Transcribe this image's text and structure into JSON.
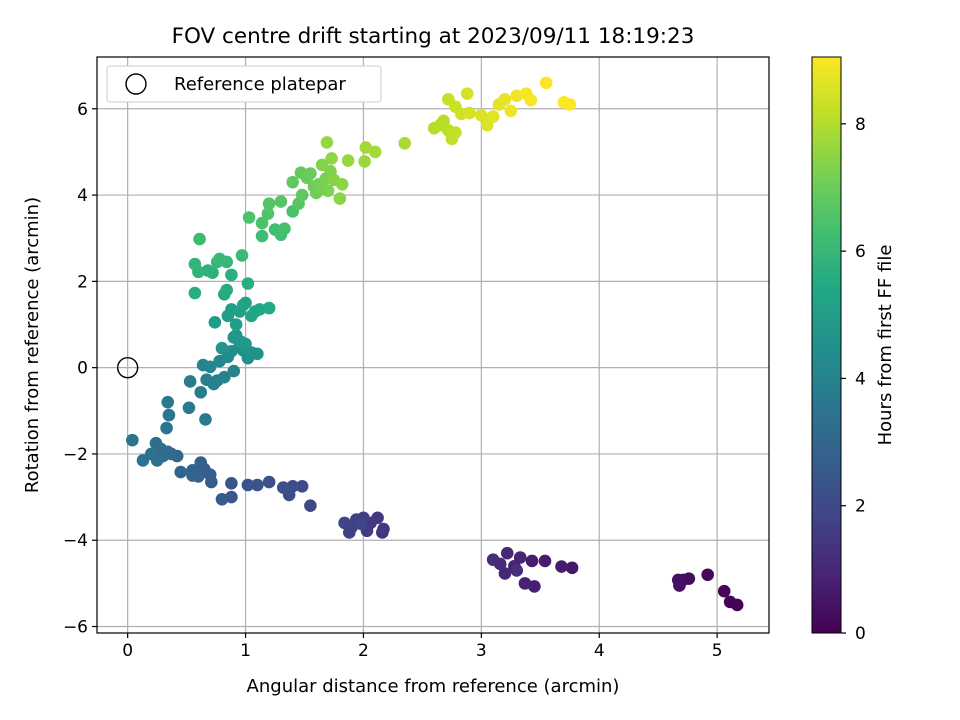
{
  "chart_data": {
    "type": "scatter",
    "title": "FOV centre drift starting at 2023/09/11 18:19:23",
    "xlabel": "Angular distance from reference (arcmin)",
    "ylabel": "Rotation from reference (arcmin)",
    "xlim": [
      -0.26,
      5.44
    ],
    "ylim": [
      -6.15,
      7.2
    ],
    "xticks": [
      0,
      1,
      2,
      3,
      4,
      5
    ],
    "yticks": [
      -6,
      -4,
      -2,
      0,
      2,
      4,
      6
    ],
    "grid": true,
    "legend": {
      "position": "top-left",
      "entries": [
        "Reference platepar"
      ]
    },
    "reference_point": {
      "x": 0,
      "y": 0,
      "label": "Reference platepar"
    },
    "colorbar": {
      "label": "Hours from first FF file",
      "range": [
        0,
        9.05
      ],
      "ticks": [
        0,
        2,
        4,
        6,
        8
      ],
      "colormap": "viridis"
    },
    "points": [
      {
        "x": 5.17,
        "y": -5.5,
        "c": 0.05
      },
      {
        "x": 5.11,
        "y": -5.43,
        "c": 0.1
      },
      {
        "x": 5.06,
        "y": -5.18,
        "c": 0.15
      },
      {
        "x": 4.92,
        "y": -4.8,
        "c": 0.2
      },
      {
        "x": 4.76,
        "y": -4.89,
        "c": 0.25
      },
      {
        "x": 4.71,
        "y": -4.92,
        "c": 0.3
      },
      {
        "x": 4.68,
        "y": -5.05,
        "c": 0.35
      },
      {
        "x": 4.67,
        "y": -4.92,
        "c": 0.4
      },
      {
        "x": 3.77,
        "y": -4.64,
        "c": 0.6
      },
      {
        "x": 3.68,
        "y": -4.61,
        "c": 0.65
      },
      {
        "x": 3.54,
        "y": -4.48,
        "c": 0.7
      },
      {
        "x": 3.43,
        "y": -4.48,
        "c": 0.75
      },
      {
        "x": 3.45,
        "y": -5.07,
        "c": 0.8
      },
      {
        "x": 3.37,
        "y": -5.0,
        "c": 0.85
      },
      {
        "x": 3.33,
        "y": -4.4,
        "c": 0.9
      },
      {
        "x": 3.28,
        "y": -4.6,
        "c": 0.95
      },
      {
        "x": 3.2,
        "y": -4.77,
        "c": 1.0
      },
      {
        "x": 3.22,
        "y": -4.3,
        "c": 1.05
      },
      {
        "x": 3.16,
        "y": -4.55,
        "c": 1.1
      },
      {
        "x": 3.1,
        "y": -4.45,
        "c": 1.15
      },
      {
        "x": 3.3,
        "y": -4.7,
        "c": 1.2
      },
      {
        "x": 2.16,
        "y": -3.82,
        "c": 1.35
      },
      {
        "x": 2.17,
        "y": -3.74,
        "c": 1.4
      },
      {
        "x": 2.12,
        "y": -3.48,
        "c": 1.45
      },
      {
        "x": 2.06,
        "y": -3.6,
        "c": 1.5
      },
      {
        "x": 2.03,
        "y": -3.78,
        "c": 1.55
      },
      {
        "x": 2.0,
        "y": -3.48,
        "c": 1.6
      },
      {
        "x": 1.94,
        "y": -3.52,
        "c": 1.65
      },
      {
        "x": 1.88,
        "y": -3.82,
        "c": 1.7
      },
      {
        "x": 1.9,
        "y": -3.7,
        "c": 1.75
      },
      {
        "x": 1.84,
        "y": -3.6,
        "c": 1.8
      },
      {
        "x": 1.98,
        "y": -3.62,
        "c": 1.85
      },
      {
        "x": 1.55,
        "y": -3.2,
        "c": 2.0
      },
      {
        "x": 1.48,
        "y": -2.75,
        "c": 2.05
      },
      {
        "x": 1.4,
        "y": -2.75,
        "c": 2.1
      },
      {
        "x": 1.37,
        "y": -2.95,
        "c": 2.15
      },
      {
        "x": 1.32,
        "y": -2.78,
        "c": 2.2
      },
      {
        "x": 1.2,
        "y": -2.65,
        "c": 2.25
      },
      {
        "x": 1.1,
        "y": -2.72,
        "c": 2.3
      },
      {
        "x": 1.02,
        "y": -2.72,
        "c": 2.35
      },
      {
        "x": 0.88,
        "y": -2.68,
        "c": 2.4
      },
      {
        "x": 0.88,
        "y": -3.0,
        "c": 2.45
      },
      {
        "x": 0.8,
        "y": -3.05,
        "c": 2.5
      },
      {
        "x": 0.71,
        "y": -2.65,
        "c": 2.6
      },
      {
        "x": 0.7,
        "y": -2.48,
        "c": 2.65
      },
      {
        "x": 0.65,
        "y": -2.35,
        "c": 2.7
      },
      {
        "x": 0.62,
        "y": -2.2,
        "c": 2.75
      },
      {
        "x": 0.6,
        "y": -2.52,
        "c": 2.8
      },
      {
        "x": 0.55,
        "y": -2.38,
        "c": 2.85
      },
      {
        "x": 0.55,
        "y": -2.5,
        "c": 2.9
      },
      {
        "x": 0.45,
        "y": -2.42,
        "c": 2.95
      },
      {
        "x": 0.42,
        "y": -2.05,
        "c": 3.0
      },
      {
        "x": 0.37,
        "y": -2.0,
        "c": 3.05
      },
      {
        "x": 0.34,
        "y": -1.95,
        "c": 3.1
      },
      {
        "x": 0.3,
        "y": -2.05,
        "c": 3.15
      },
      {
        "x": 0.28,
        "y": -1.88,
        "c": 3.2
      },
      {
        "x": 0.25,
        "y": -2.15,
        "c": 3.25
      },
      {
        "x": 0.24,
        "y": -1.75,
        "c": 3.3
      },
      {
        "x": 0.2,
        "y": -2.0,
        "c": 3.35
      },
      {
        "x": 0.13,
        "y": -2.15,
        "c": 3.4
      },
      {
        "x": 0.04,
        "y": -1.68,
        "c": 3.45
      },
      {
        "x": 0.33,
        "y": -1.4,
        "c": 3.5
      },
      {
        "x": 0.35,
        "y": -1.1,
        "c": 3.55
      },
      {
        "x": 0.34,
        "y": -0.8,
        "c": 3.6
      },
      {
        "x": 0.66,
        "y": -1.2,
        "c": 3.65
      },
      {
        "x": 0.52,
        "y": -0.93,
        "c": 3.7
      },
      {
        "x": 0.53,
        "y": -0.32,
        "c": 3.75
      },
      {
        "x": 0.62,
        "y": -0.57,
        "c": 3.8
      },
      {
        "x": 0.67,
        "y": -0.28,
        "c": 3.85
      },
      {
        "x": 0.73,
        "y": -0.38,
        "c": 3.9
      },
      {
        "x": 0.76,
        "y": -0.3,
        "c": 3.95
      },
      {
        "x": 0.82,
        "y": -0.22,
        "c": 4.0
      },
      {
        "x": 0.9,
        "y": -0.08,
        "c": 4.05
      },
      {
        "x": 0.64,
        "y": 0.06,
        "c": 4.1
      },
      {
        "x": 0.7,
        "y": 0.02,
        "c": 4.15
      },
      {
        "x": 0.78,
        "y": 0.15,
        "c": 4.2
      },
      {
        "x": 0.85,
        "y": 0.25,
        "c": 4.3
      },
      {
        "x": 0.88,
        "y": 0.38,
        "c": 4.35
      },
      {
        "x": 0.95,
        "y": 0.5,
        "c": 4.4
      },
      {
        "x": 0.98,
        "y": 0.4,
        "c": 4.45
      },
      {
        "x": 1.02,
        "y": 0.22,
        "c": 4.5
      },
      {
        "x": 1.05,
        "y": 0.35,
        "c": 4.55
      },
      {
        "x": 1.1,
        "y": 0.32,
        "c": 4.6
      },
      {
        "x": 0.8,
        "y": 0.45,
        "c": 4.65
      },
      {
        "x": 0.9,
        "y": 0.7,
        "c": 4.7
      },
      {
        "x": 0.92,
        "y": 0.75,
        "c": 4.75
      },
      {
        "x": 0.96,
        "y": 0.6,
        "c": 4.8
      },
      {
        "x": 1.0,
        "y": 0.55,
        "c": 4.85
      },
      {
        "x": 0.74,
        "y": 1.05,
        "c": 4.95
      },
      {
        "x": 0.85,
        "y": 1.2,
        "c": 5.0
      },
      {
        "x": 0.88,
        "y": 1.35,
        "c": 5.05
      },
      {
        "x": 0.92,
        "y": 1.0,
        "c": 5.1
      },
      {
        "x": 0.95,
        "y": 1.3,
        "c": 5.15
      },
      {
        "x": 0.98,
        "y": 1.45,
        "c": 5.2
      },
      {
        "x": 1.0,
        "y": 1.5,
        "c": 5.25
      },
      {
        "x": 1.05,
        "y": 1.2,
        "c": 5.3
      },
      {
        "x": 1.08,
        "y": 1.3,
        "c": 5.35
      },
      {
        "x": 1.12,
        "y": 1.35,
        "c": 5.4
      },
      {
        "x": 1.2,
        "y": 1.38,
        "c": 5.45
      },
      {
        "x": 0.82,
        "y": 1.7,
        "c": 5.5
      },
      {
        "x": 0.84,
        "y": 1.8,
        "c": 5.55
      },
      {
        "x": 0.57,
        "y": 1.73,
        "c": 5.6
      },
      {
        "x": 1.02,
        "y": 1.95,
        "c": 5.65
      },
      {
        "x": 0.88,
        "y": 2.15,
        "c": 5.7
      },
      {
        "x": 0.72,
        "y": 2.2,
        "c": 5.75
      },
      {
        "x": 0.68,
        "y": 2.25,
        "c": 5.8
      },
      {
        "x": 0.6,
        "y": 2.22,
        "c": 5.85
      },
      {
        "x": 0.57,
        "y": 2.4,
        "c": 5.9
      },
      {
        "x": 0.76,
        "y": 2.45,
        "c": 5.95
      },
      {
        "x": 0.84,
        "y": 2.45,
        "c": 6.0
      },
      {
        "x": 0.78,
        "y": 2.52,
        "c": 6.05
      },
      {
        "x": 0.97,
        "y": 2.6,
        "c": 6.1
      },
      {
        "x": 0.61,
        "y": 2.98,
        "c": 6.15
      },
      {
        "x": 1.14,
        "y": 3.05,
        "c": 6.2
      },
      {
        "x": 1.25,
        "y": 3.2,
        "c": 6.25
      },
      {
        "x": 1.3,
        "y": 3.08,
        "c": 6.3
      },
      {
        "x": 1.33,
        "y": 3.22,
        "c": 6.35
      },
      {
        "x": 1.4,
        "y": 3.62,
        "c": 6.4
      },
      {
        "x": 1.14,
        "y": 3.35,
        "c": 6.45
      },
      {
        "x": 1.03,
        "y": 3.48,
        "c": 6.5
      },
      {
        "x": 1.19,
        "y": 3.57,
        "c": 6.55
      },
      {
        "x": 1.2,
        "y": 3.8,
        "c": 6.6
      },
      {
        "x": 1.3,
        "y": 3.85,
        "c": 6.65
      },
      {
        "x": 1.45,
        "y": 3.8,
        "c": 6.7
      },
      {
        "x": 1.48,
        "y": 4.0,
        "c": 6.75
      },
      {
        "x": 1.4,
        "y": 4.3,
        "c": 6.8
      },
      {
        "x": 1.47,
        "y": 4.52,
        "c": 6.85
      },
      {
        "x": 1.52,
        "y": 4.4,
        "c": 6.9
      },
      {
        "x": 1.55,
        "y": 4.5,
        "c": 6.95
      },
      {
        "x": 1.58,
        "y": 4.2,
        "c": 7.0
      },
      {
        "x": 1.6,
        "y": 4.05,
        "c": 7.05
      },
      {
        "x": 1.62,
        "y": 4.25,
        "c": 7.1
      },
      {
        "x": 1.65,
        "y": 4.15,
        "c": 7.15
      },
      {
        "x": 1.68,
        "y": 4.38,
        "c": 7.2
      },
      {
        "x": 1.7,
        "y": 4.1,
        "c": 7.25
      },
      {
        "x": 1.72,
        "y": 4.55,
        "c": 7.3
      },
      {
        "x": 1.65,
        "y": 4.7,
        "c": 7.35
      },
      {
        "x": 1.75,
        "y": 4.35,
        "c": 7.4
      },
      {
        "x": 1.8,
        "y": 3.92,
        "c": 7.45
      },
      {
        "x": 1.82,
        "y": 4.25,
        "c": 7.5
      },
      {
        "x": 1.73,
        "y": 4.85,
        "c": 7.55
      },
      {
        "x": 1.69,
        "y": 5.22,
        "c": 7.6
      },
      {
        "x": 1.87,
        "y": 4.8,
        "c": 7.65
      },
      {
        "x": 2.01,
        "y": 4.78,
        "c": 7.7
      },
      {
        "x": 2.02,
        "y": 5.1,
        "c": 7.75
      },
      {
        "x": 2.1,
        "y": 5.0,
        "c": 7.8
      },
      {
        "x": 2.35,
        "y": 5.2,
        "c": 7.9
      },
      {
        "x": 2.6,
        "y": 5.55,
        "c": 8.0
      },
      {
        "x": 2.65,
        "y": 5.62,
        "c": 8.05
      },
      {
        "x": 2.68,
        "y": 5.72,
        "c": 8.1
      },
      {
        "x": 2.72,
        "y": 5.5,
        "c": 8.15
      },
      {
        "x": 2.75,
        "y": 5.3,
        "c": 8.2
      },
      {
        "x": 2.78,
        "y": 5.45,
        "c": 8.25
      },
      {
        "x": 2.72,
        "y": 6.22,
        "c": 8.3
      },
      {
        "x": 2.78,
        "y": 6.05,
        "c": 8.35
      },
      {
        "x": 2.83,
        "y": 5.88,
        "c": 8.4
      },
      {
        "x": 2.88,
        "y": 6.35,
        "c": 8.45
      },
      {
        "x": 2.9,
        "y": 5.9,
        "c": 8.5
      },
      {
        "x": 3.0,
        "y": 5.85,
        "c": 8.55
      },
      {
        "x": 3.05,
        "y": 5.62,
        "c": 8.6
      },
      {
        "x": 3.1,
        "y": 5.82,
        "c": 8.65
      },
      {
        "x": 3.15,
        "y": 6.1,
        "c": 8.7
      },
      {
        "x": 3.2,
        "y": 6.22,
        "c": 8.75
      },
      {
        "x": 3.25,
        "y": 5.95,
        "c": 8.8
      },
      {
        "x": 3.3,
        "y": 6.3,
        "c": 8.85
      },
      {
        "x": 3.38,
        "y": 6.35,
        "c": 8.9
      },
      {
        "x": 3.42,
        "y": 6.2,
        "c": 8.95
      },
      {
        "x": 3.55,
        "y": 6.6,
        "c": 9.0
      },
      {
        "x": 3.7,
        "y": 6.15,
        "c": 9.02
      },
      {
        "x": 3.75,
        "y": 6.1,
        "c": 9.04
      }
    ]
  }
}
